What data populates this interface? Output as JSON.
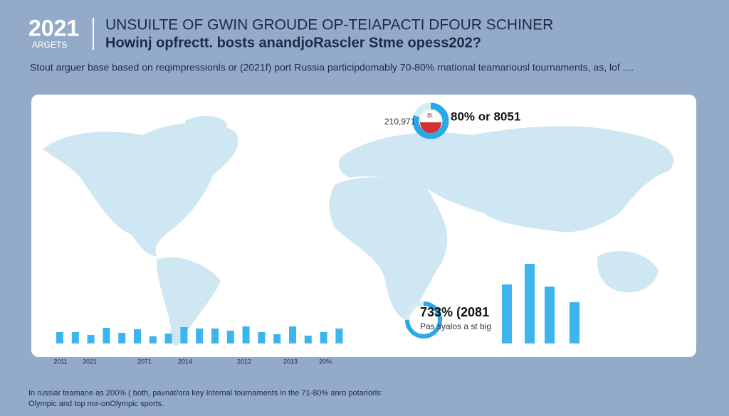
{
  "header": {
    "year": "2021",
    "badge": "ARGETS",
    "title": "UNSUILTE OF GWIN GROUDE OP-TEIAPACTI DFOUR SCHINER",
    "subtitle": "Howinj opfrectt. bosts anandjoRascler Stme opess202?"
  },
  "description": "Stout arguer base based on reqimpressionls or (2021f) port Russia participdomably 70-80% rnational teamariousl tournaments, as, lof ....",
  "donut_top": {
    "value": 80,
    "left_label": "210,971",
    "badge": "8\\",
    "label": "80% or 8051"
  },
  "donut_bottom": {
    "value": 75,
    "label": "733% (2081",
    "sublabel": "Pas syalos a st big"
  },
  "bottom_bars": {
    "values": [
      16,
      16,
      12,
      22,
      15,
      20,
      10,
      14,
      23,
      21,
      21,
      18,
      24,
      16,
      13,
      24,
      11,
      16,
      21
    ]
  },
  "right_bars": {
    "values": [
      83,
      112,
      80,
      58
    ]
  },
  "axis_labels": [
    "2011",
    "2021",
    "2071",
    "2014",
    "2012",
    "2013",
    "20%"
  ],
  "footer": [
    "In russiar teamane as 200% ( both, pavnat/ora key Internal tournaments in the 71-80% anro potariorls:",
    "Olympic and top nor-onOlympic sports."
  ]
}
